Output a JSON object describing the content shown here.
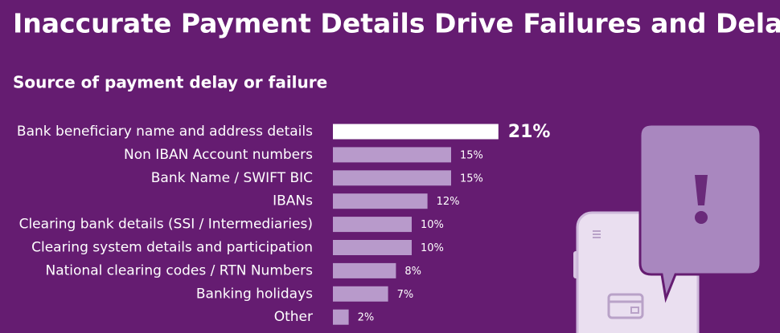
{
  "chart_data": {
    "type": "bar",
    "orientation": "horizontal",
    "title": "Inaccurate Payment Details Drive Failures and Delays",
    "subtitle": "Source of payment delay or failure",
    "categories": [
      "Bank beneficiary name and address details",
      "Non IBAN Account numbers",
      "Bank Name / SWIFT BIC",
      "IBANs",
      "Clearing bank details (SSI / Intermediaries)",
      "Clearing system details and participation",
      "National clearing codes / RTN Numbers",
      "Banking holidays",
      "Other"
    ],
    "values": [
      21,
      15,
      15,
      12,
      10,
      10,
      8,
      7,
      2
    ],
    "value_labels": [
      "21%",
      "15%",
      "15%",
      "12%",
      "10%",
      "10%",
      "8%",
      "7%",
      "2%"
    ],
    "colors": [
      "#ffffff",
      "#b89acb",
      "#b89acb",
      "#b89acb",
      "#b89acb",
      "#b89acb",
      "#b89acb",
      "#b89acb",
      "#b89acb"
    ]
  }
}
